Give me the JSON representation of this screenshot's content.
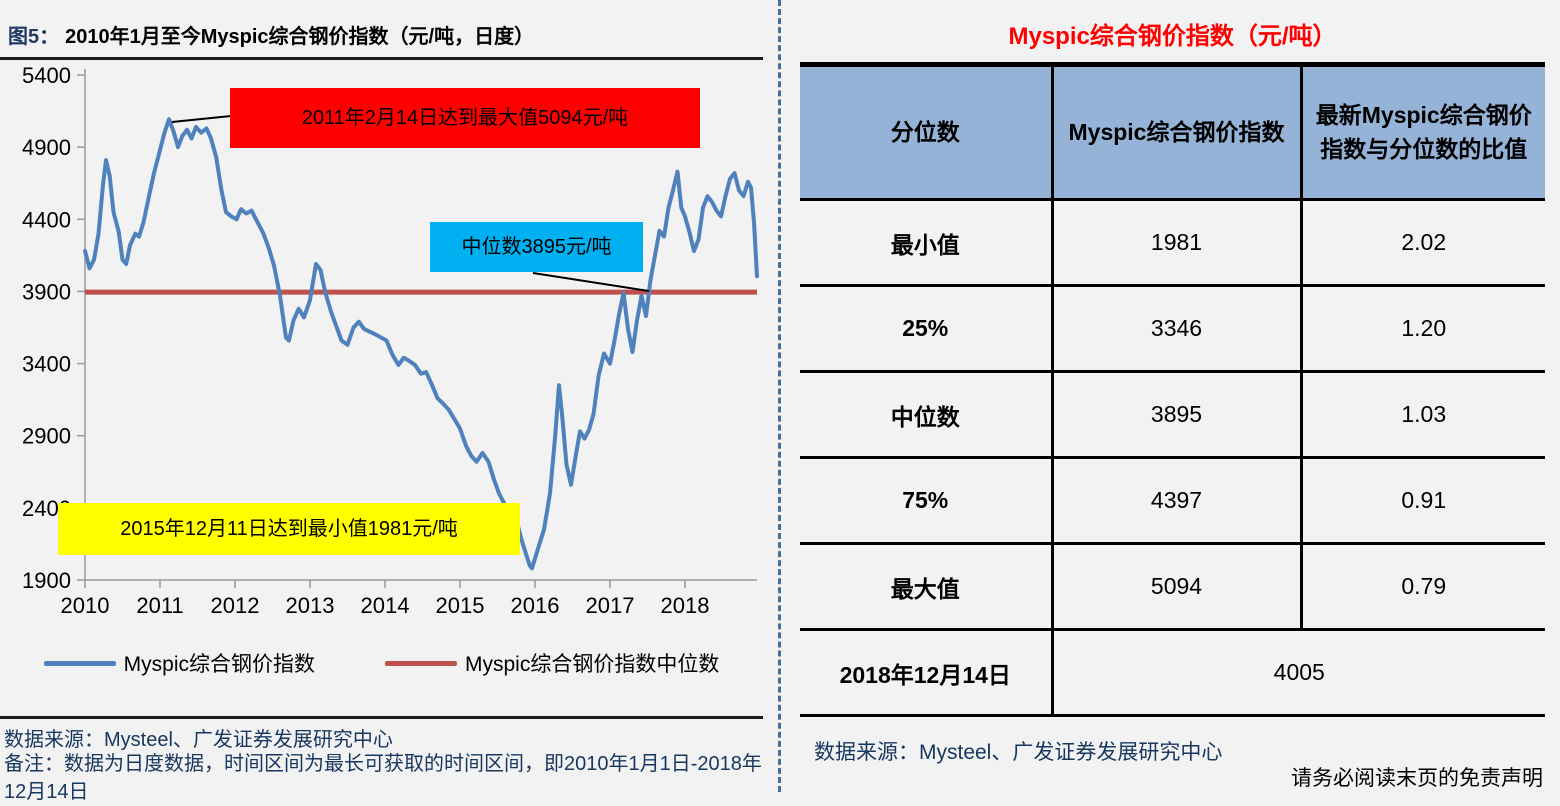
{
  "left_panel": {
    "figure_label": "图5：",
    "figure_title": "2010年1月至今Myspic综合钢价指数（元/吨，日度）",
    "annotations": {
      "max": {
        "text": "2011年2月14日达到最大值5094元/吨",
        "bg": "#FF0000"
      },
      "median": {
        "text": "中位数3895元/吨",
        "bg": "#00B0F0"
      },
      "min": {
        "text": "2015年12月11日达到最小值1981元/吨",
        "bg": "#FFFF00"
      }
    },
    "legend": [
      {
        "label": "Myspic综合钢价指数"
      },
      {
        "label": "Myspic综合钢价指数中位数"
      }
    ],
    "source": "数据来源：Mysteel、广发证券发展研究中心",
    "note": "备注：数据为日度数据，时间区间为最长可获取的时间区间，即2010年1月1日-2018年12月14日"
  },
  "chart_data": {
    "type": "line",
    "title": "2010年1月至今Myspic综合钢价指数（元/吨，日度）",
    "xlabel": "",
    "ylabel": "",
    "ylim": [
      1900,
      5400
    ],
    "y_ticks": [
      5400,
      4900,
      4400,
      3900,
      3400,
      2900,
      2400,
      1900
    ],
    "x_ticks": [
      2010,
      2011,
      2012,
      2013,
      2014,
      2015,
      2016,
      2017,
      2018
    ],
    "grid": false,
    "legend_position": "bottom",
    "stats": {
      "min": 1981,
      "min_date": "2015年12月11日",
      "max": 5094,
      "max_date": "2011年2月14日",
      "median": 3895,
      "latest": 4005,
      "latest_date": "2018年12月14日"
    },
    "series": [
      {
        "name": "Myspic综合钢价指数",
        "color": "#4F81BD",
        "points": [
          [
            2010.0,
            4180
          ],
          [
            2010.06,
            4060
          ],
          [
            2010.12,
            4120
          ],
          [
            2010.18,
            4300
          ],
          [
            2010.24,
            4640
          ],
          [
            2010.28,
            4810
          ],
          [
            2010.33,
            4700
          ],
          [
            2010.38,
            4450
          ],
          [
            2010.45,
            4310
          ],
          [
            2010.5,
            4120
          ],
          [
            2010.55,
            4090
          ],
          [
            2010.6,
            4220
          ],
          [
            2010.67,
            4300
          ],
          [
            2010.72,
            4280
          ],
          [
            2010.78,
            4380
          ],
          [
            2010.85,
            4550
          ],
          [
            2010.92,
            4720
          ],
          [
            2011.0,
            4880
          ],
          [
            2011.06,
            5000
          ],
          [
            2011.12,
            5094
          ],
          [
            2011.18,
            5010
          ],
          [
            2011.24,
            4900
          ],
          [
            2011.3,
            4980
          ],
          [
            2011.36,
            5020
          ],
          [
            2011.42,
            4960
          ],
          [
            2011.48,
            5040
          ],
          [
            2011.55,
            5000
          ],
          [
            2011.62,
            5030
          ],
          [
            2011.68,
            4960
          ],
          [
            2011.75,
            4830
          ],
          [
            2011.82,
            4600
          ],
          [
            2011.88,
            4450
          ],
          [
            2011.95,
            4420
          ],
          [
            2012.02,
            4400
          ],
          [
            2012.08,
            4470
          ],
          [
            2012.15,
            4440
          ],
          [
            2012.22,
            4460
          ],
          [
            2012.3,
            4380
          ],
          [
            2012.38,
            4300
          ],
          [
            2012.45,
            4200
          ],
          [
            2012.52,
            4080
          ],
          [
            2012.6,
            3870
          ],
          [
            2012.68,
            3580
          ],
          [
            2012.72,
            3560
          ],
          [
            2012.78,
            3700
          ],
          [
            2012.85,
            3780
          ],
          [
            2012.92,
            3720
          ],
          [
            2013.0,
            3840
          ],
          [
            2013.08,
            4090
          ],
          [
            2013.14,
            4050
          ],
          [
            2013.2,
            3900
          ],
          [
            2013.28,
            3760
          ],
          [
            2013.35,
            3660
          ],
          [
            2013.42,
            3560
          ],
          [
            2013.5,
            3530
          ],
          [
            2013.58,
            3650
          ],
          [
            2013.65,
            3690
          ],
          [
            2013.72,
            3640
          ],
          [
            2013.8,
            3620
          ],
          [
            2013.88,
            3600
          ],
          [
            2013.95,
            3580
          ],
          [
            2014.02,
            3560
          ],
          [
            2014.1,
            3460
          ],
          [
            2014.18,
            3390
          ],
          [
            2014.25,
            3440
          ],
          [
            2014.32,
            3420
          ],
          [
            2014.4,
            3390
          ],
          [
            2014.48,
            3330
          ],
          [
            2014.55,
            3340
          ],
          [
            2014.62,
            3260
          ],
          [
            2014.7,
            3160
          ],
          [
            2014.78,
            3120
          ],
          [
            2014.85,
            3080
          ],
          [
            2014.92,
            3020
          ],
          [
            2015.0,
            2950
          ],
          [
            2015.08,
            2830
          ],
          [
            2015.15,
            2760
          ],
          [
            2015.22,
            2720
          ],
          [
            2015.3,
            2780
          ],
          [
            2015.38,
            2720
          ],
          [
            2015.45,
            2600
          ],
          [
            2015.52,
            2500
          ],
          [
            2015.6,
            2420
          ],
          [
            2015.68,
            2360
          ],
          [
            2015.75,
            2320
          ],
          [
            2015.82,
            2180
          ],
          [
            2015.88,
            2080
          ],
          [
            2015.93,
            2000
          ],
          [
            2015.96,
            1981
          ],
          [
            2016.0,
            2050
          ],
          [
            2016.06,
            2150
          ],
          [
            2016.12,
            2250
          ],
          [
            2016.2,
            2500
          ],
          [
            2016.27,
            2900
          ],
          [
            2016.32,
            3250
          ],
          [
            2016.36,
            3050
          ],
          [
            2016.42,
            2700
          ],
          [
            2016.48,
            2560
          ],
          [
            2016.55,
            2780
          ],
          [
            2016.6,
            2930
          ],
          [
            2016.66,
            2880
          ],
          [
            2016.72,
            2940
          ],
          [
            2016.78,
            3050
          ],
          [
            2016.85,
            3320
          ],
          [
            2016.92,
            3470
          ],
          [
            2017.0,
            3400
          ],
          [
            2017.06,
            3560
          ],
          [
            2017.12,
            3740
          ],
          [
            2017.18,
            3890
          ],
          [
            2017.24,
            3640
          ],
          [
            2017.3,
            3480
          ],
          [
            2017.36,
            3700
          ],
          [
            2017.42,
            3870
          ],
          [
            2017.48,
            3730
          ],
          [
            2017.54,
            3980
          ],
          [
            2017.6,
            4150
          ],
          [
            2017.66,
            4320
          ],
          [
            2017.72,
            4280
          ],
          [
            2017.78,
            4480
          ],
          [
            2017.84,
            4600
          ],
          [
            2017.9,
            4730
          ],
          [
            2017.95,
            4480
          ],
          [
            2018.0,
            4420
          ],
          [
            2018.06,
            4310
          ],
          [
            2018.12,
            4180
          ],
          [
            2018.18,
            4260
          ],
          [
            2018.24,
            4480
          ],
          [
            2018.3,
            4560
          ],
          [
            2018.36,
            4520
          ],
          [
            2018.42,
            4460
          ],
          [
            2018.48,
            4420
          ],
          [
            2018.54,
            4560
          ],
          [
            2018.6,
            4680
          ],
          [
            2018.66,
            4720
          ],
          [
            2018.72,
            4600
          ],
          [
            2018.78,
            4560
          ],
          [
            2018.84,
            4660
          ],
          [
            2018.88,
            4620
          ],
          [
            2018.92,
            4380
          ],
          [
            2018.96,
            4005
          ]
        ]
      },
      {
        "name": "Myspic综合钢价指数中位数",
        "color": "#C0504D",
        "value": 3895
      }
    ]
  },
  "right_panel": {
    "title": "Myspic综合钢价指数（元/吨）",
    "title_color": "#FF0000",
    "table": {
      "header_bg": "#95B3D7",
      "columns": [
        "分位数",
        "Myspic综合钢价指数",
        "最新Myspic综合钢价指数的比值与分位数"
      ],
      "columns_display": [
        "分位数",
        "Myspic综合钢价指数",
        "最新Myspic综合钢价指数与分位数的比值"
      ],
      "rows": [
        [
          "最小值",
          "1981",
          "2.02"
        ],
        [
          "25%",
          "3346",
          "1.20"
        ],
        [
          "中位数",
          "3895",
          "1.03"
        ],
        [
          "75%",
          "4397",
          "0.91"
        ],
        [
          "最大值",
          "5094",
          "0.79"
        ]
      ],
      "footer_row": {
        "label": "2018年12月14日",
        "value": "4005"
      }
    },
    "source": "数据来源：Mysteel、广发证券发展研究中心",
    "disclaimer": "请务必阅读末页的免责声明"
  }
}
